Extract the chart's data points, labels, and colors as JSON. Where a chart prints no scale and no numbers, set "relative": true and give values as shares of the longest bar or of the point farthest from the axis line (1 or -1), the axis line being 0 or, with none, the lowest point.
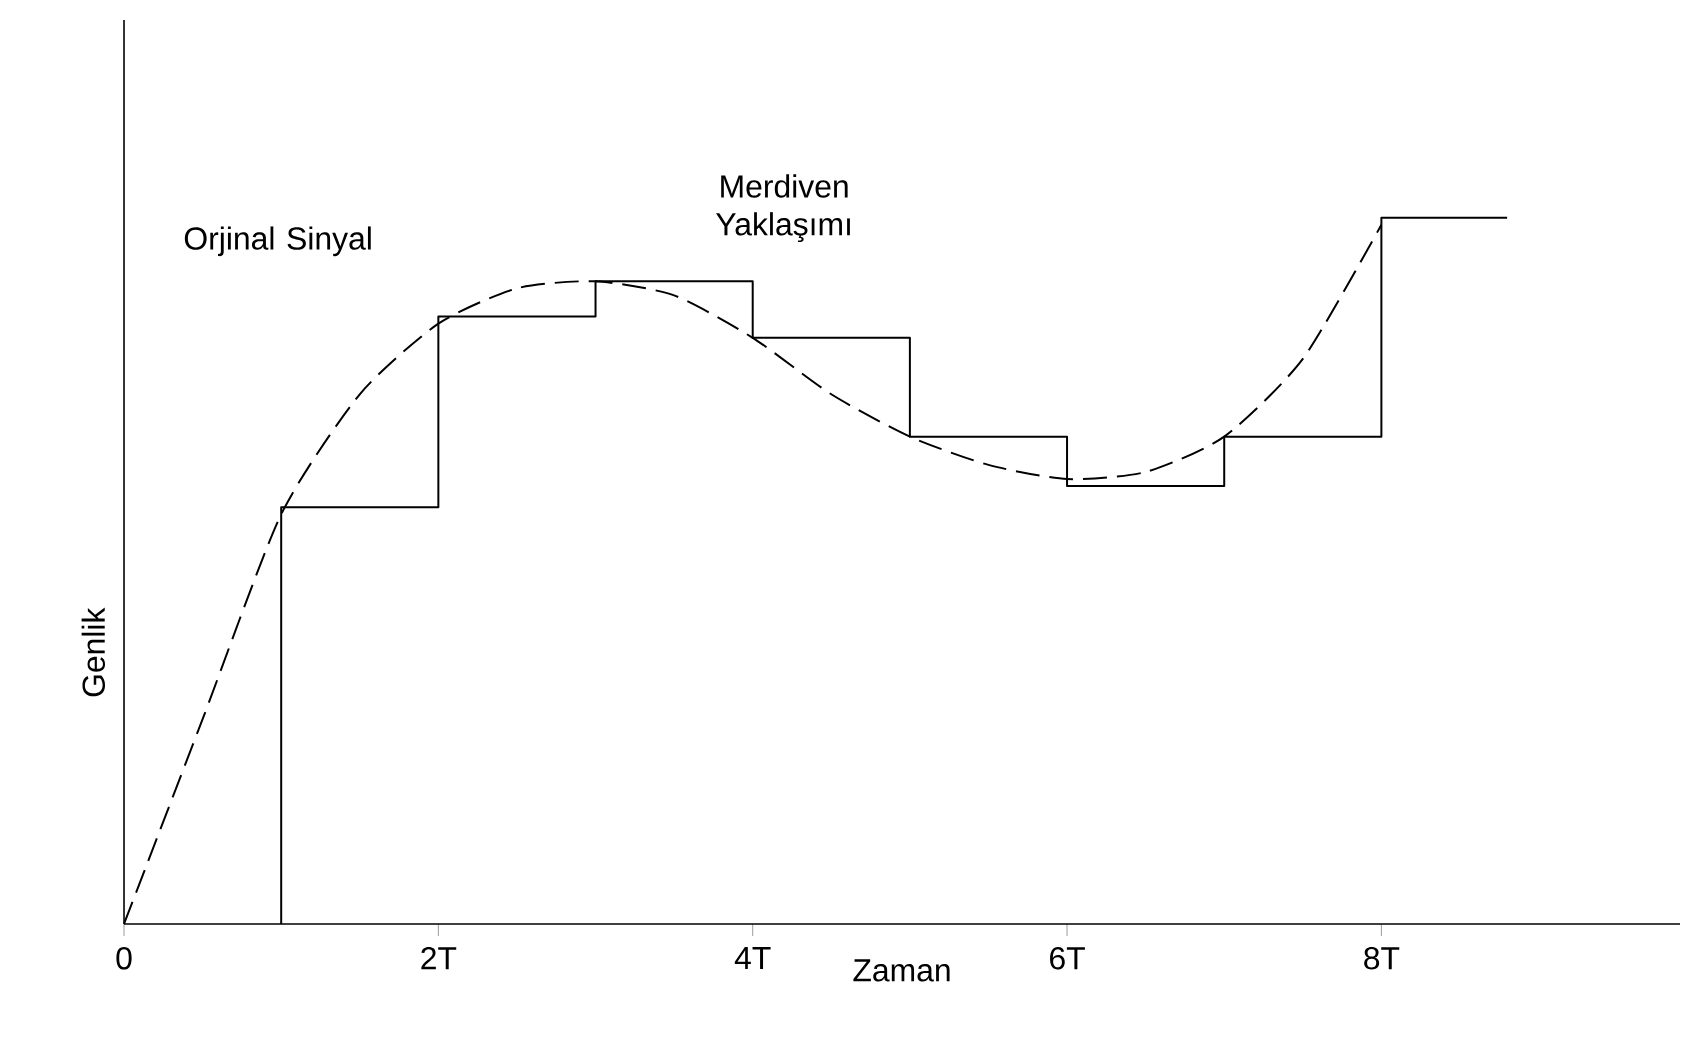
{
  "chart_data": {
    "type": "line",
    "relative": true,
    "xlabel": "Zaman",
    "ylabel": "Genlik",
    "xlim": [
      0,
      9.9
    ],
    "xticks": [
      0,
      {
        "value": 2,
        "label": "2T"
      },
      {
        "value": 4,
        "label": "4T"
      },
      {
        "value": 6,
        "label": "6T"
      },
      {
        "value": 8,
        "label": "8T"
      }
    ],
    "tick_labels": "x",
    "marker": "none",
    "series": [
      {
        "name": "Orjinal Sinyal",
        "line_style": "dashed",
        "color": "#000000",
        "x": [
          0,
          0.5,
          1,
          1.5,
          2,
          2.5,
          3,
          3.5,
          4,
          4.5,
          5,
          5.5,
          6,
          6.5,
          7,
          7.5,
          8
        ],
        "values": [
          0,
          0.29,
          0.58,
          0.75,
          0.85,
          0.9,
          0.91,
          0.89,
          0.83,
          0.75,
          0.69,
          0.65,
          0.63,
          0.64,
          0.69,
          0.8,
          0.99
        ]
      },
      {
        "name": "Merdiven Yaklaşımı",
        "type": "step",
        "line_style": "solid",
        "color": "#000000",
        "x": [
          1,
          1,
          2,
          3,
          4,
          5,
          6,
          7,
          8,
          8.8
        ],
        "values": [
          0,
          0.59,
          0.86,
          0.91,
          0.83,
          0.69,
          0.62,
          0.69,
          1.0,
          1.0
        ]
      }
    ]
  }
}
